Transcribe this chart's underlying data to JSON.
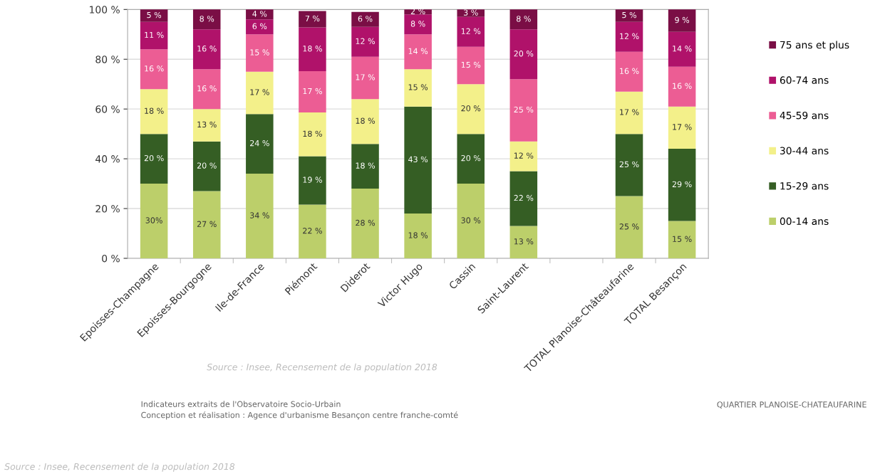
{
  "chart_data": {
    "type": "bar",
    "stacked": true,
    "categories": [
      "Epoisses-Champagne",
      "Epoisses-Bourgogne",
      "Ile-de-France",
      "Piémont",
      "Diderot",
      "Victor Hugo",
      "Cassin",
      "Saint-Laurent",
      null,
      "TOTAL Planoise-Châteaufarine",
      "TOTAL Besançon"
    ],
    "series": [
      {
        "name": "00-14 ans",
        "color": "#bccf6a",
        "values": [
          30,
          27,
          34,
          21.6,
          28,
          18,
          30,
          13,
          null,
          25,
          15
        ],
        "value_labels": [
          "30%",
          "27 %",
          "34 %",
          "22 %",
          "28 %",
          "18 %",
          "30 %",
          "13 %",
          null,
          "25 %",
          "15 %"
        ]
      },
      {
        "name": "15-29 ans",
        "color": "#355e24",
        "values": [
          20,
          20,
          24,
          19.4,
          18,
          43,
          20,
          22,
          null,
          25,
          29
        ],
        "value_labels": [
          "20 %",
          "20 %",
          "24 %",
          "19 %",
          "18 %",
          "43 %",
          "20 %",
          "22 %",
          null,
          "25 %",
          "29 %"
        ]
      },
      {
        "name": "30-44 ans",
        "color": "#f3f08a",
        "values": [
          18,
          13,
          17,
          17.6,
          18,
          15,
          20,
          12,
          null,
          17,
          17
        ],
        "value_labels": [
          "18 %",
          "13 %",
          "17 %",
          "18 %",
          "18 %",
          "15 %",
          "20 %",
          "12 %",
          null,
          "17 %",
          "17 %"
        ]
      },
      {
        "name": "45-59 ans",
        "color": "#ec5d94",
        "values": [
          16,
          16,
          15,
          16.6,
          17,
          14,
          15,
          25,
          null,
          16,
          16
        ],
        "value_labels": [
          "16 %",
          "16 %",
          "15 %",
          "17 %",
          "17 %",
          "14 %",
          "15 %",
          "25 %",
          null,
          "16 %",
          "16 %"
        ]
      },
      {
        "name": "60-74 ans",
        "color": "#b0126a",
        "values": [
          11,
          16,
          6,
          17.6,
          12,
          8,
          12,
          20,
          null,
          12,
          14
        ],
        "value_labels": [
          "11 %",
          "16 %",
          "6 %",
          "18 %",
          "12 %",
          "8 %",
          "12 %",
          "20 %",
          null,
          "12 %",
          "14 %"
        ]
      },
      {
        "name": "75 ans et plus",
        "color": "#7a0e45",
        "values": [
          5,
          8,
          4,
          6.6,
          6,
          2,
          3,
          8,
          null,
          5,
          9
        ],
        "value_labels": [
          "5 %",
          "8 %",
          "4 %",
          "7 %",
          "6 %",
          "2 %",
          "3 %",
          "8 %",
          null,
          "5 %",
          "9 %"
        ]
      }
    ],
    "ylim": [
      0,
      100
    ],
    "yticks": [
      {
        "value": 0,
        "label": "0 %"
      },
      {
        "value": 20,
        "label": "20 %"
      },
      {
        "value": 40,
        "label": "40 %"
      },
      {
        "value": 60,
        "label": "60 %"
      },
      {
        "value": 80,
        "label": "80 %"
      },
      {
        "value": 100,
        "label": "100 %"
      }
    ],
    "grid": "y",
    "legend": "right",
    "annotations": [
      "Source : Insee, Recensement de la population 2018",
      "Indicateurs extraits de l'Observatoire Socio-Urbain",
      "Conception et réalisation : Agence d'urbanisme Besançon centre franche-comté",
      "QUARTIER PLANOISE-CHATEAUFARINE",
      "Source : Insee, Recensement de la population 2018"
    ]
  }
}
